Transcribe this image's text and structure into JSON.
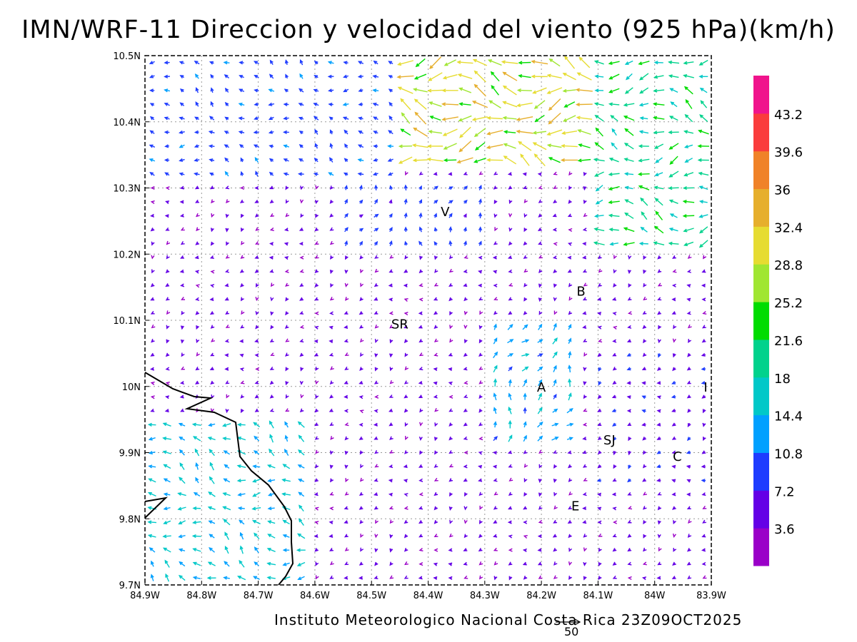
{
  "chart_data": {
    "type": "vector-field",
    "title": "IMN/WRF-11 Direccion y velocidad del viento (925 hPa)(km/h)",
    "xlim": [
      -84.9,
      -83.9
    ],
    "ylim": [
      9.7,
      10.5
    ],
    "x_tick_labels": [
      "84.9W",
      "84.8W",
      "84.7W",
      "84.6W",
      "84.5W",
      "84.4W",
      "84.3W",
      "84.2W",
      "84.1W",
      "84W",
      "83.9W"
    ],
    "y_tick_labels": [
      "9.7N",
      "9.8N",
      "9.9N",
      "10N",
      "10.1N",
      "10.2N",
      "10.3N",
      "10.4N",
      "10.5N"
    ],
    "y_tick_values": [
      9.7,
      9.8,
      9.9,
      10.0,
      10.1,
      10.2,
      10.3,
      10.4,
      10.5
    ],
    "x_tick_values": [
      -84.9,
      -84.8,
      -84.7,
      -84.6,
      -84.5,
      -84.4,
      -84.3,
      -84.2,
      -84.1,
      -84.0,
      -83.9
    ],
    "grid": true,
    "colorbar": {
      "labels": [
        "3.6",
        "7.2",
        "10.8",
        "14.4",
        "18",
        "21.6",
        "25.2",
        "28.8",
        "32.4",
        "36",
        "39.6",
        "43.2"
      ],
      "colors": [
        "#9a00c8",
        "#6400e6",
        "#1e3cff",
        "#00a0ff",
        "#00c8c8",
        "#00d28c",
        "#00dc00",
        "#a0e632",
        "#e6dc32",
        "#e6af2d",
        "#f08228",
        "#fa3c3c",
        "#f0148c"
      ],
      "placement": "right"
    },
    "cities": [
      {
        "label": "V",
        "lon": -84.37,
        "lat": 10.265
      },
      {
        "label": "B",
        "lon": -84.13,
        "lat": 10.145
      },
      {
        "label": "SR",
        "lon": -84.45,
        "lat": 10.095
      },
      {
        "label": "A",
        "lon": -84.2,
        "lat": 10.0
      },
      {
        "label": "I",
        "lon": -83.91,
        "lat": 10.0
      },
      {
        "label": "SJ",
        "lon": -84.08,
        "lat": 9.92
      },
      {
        "label": "C",
        "lon": -83.96,
        "lat": 9.895
      },
      {
        "label": "E",
        "lon": -84.14,
        "lat": 9.82
      }
    ],
    "reference_vector": "50",
    "wind_regions": [
      {
        "lon": [
          -84.45,
          -84.1
        ],
        "lat": [
          10.34,
          10.5
        ],
        "u": -30,
        "v": 2
      },
      {
        "lon": [
          -84.1,
          -83.9
        ],
        "lat": [
          10.2,
          10.5
        ],
        "u": -20,
        "v": 2
      },
      {
        "lon": [
          -84.9,
          -84.45
        ],
        "lat": [
          10.32,
          10.5
        ],
        "u": -9,
        "v": 4
      },
      {
        "lon": [
          -84.9,
          -84.6
        ],
        "lat": [
          9.7,
          9.95
        ],
        "u": -14,
        "v": 6
      },
      {
        "lon": [
          -84.3,
          -84.15
        ],
        "lat": [
          9.9,
          10.1
        ],
        "u": 6,
        "v": 12
      },
      {
        "lon": [
          -84.1,
          -83.9
        ],
        "lat": [
          9.85,
          10.05
        ],
        "u": -6,
        "v": -3
      },
      {
        "lon": [
          -84.55,
          -84.3
        ],
        "lat": [
          10.2,
          10.32
        ],
        "u": 2,
        "v": 9
      }
    ],
    "background_wind": {
      "u": -3,
      "v": -2
    }
  },
  "footer": {
    "credit": "Instituto Meteorologico Nacional Costa Rica 23Z09OCT2025",
    "ref_label": "50"
  }
}
